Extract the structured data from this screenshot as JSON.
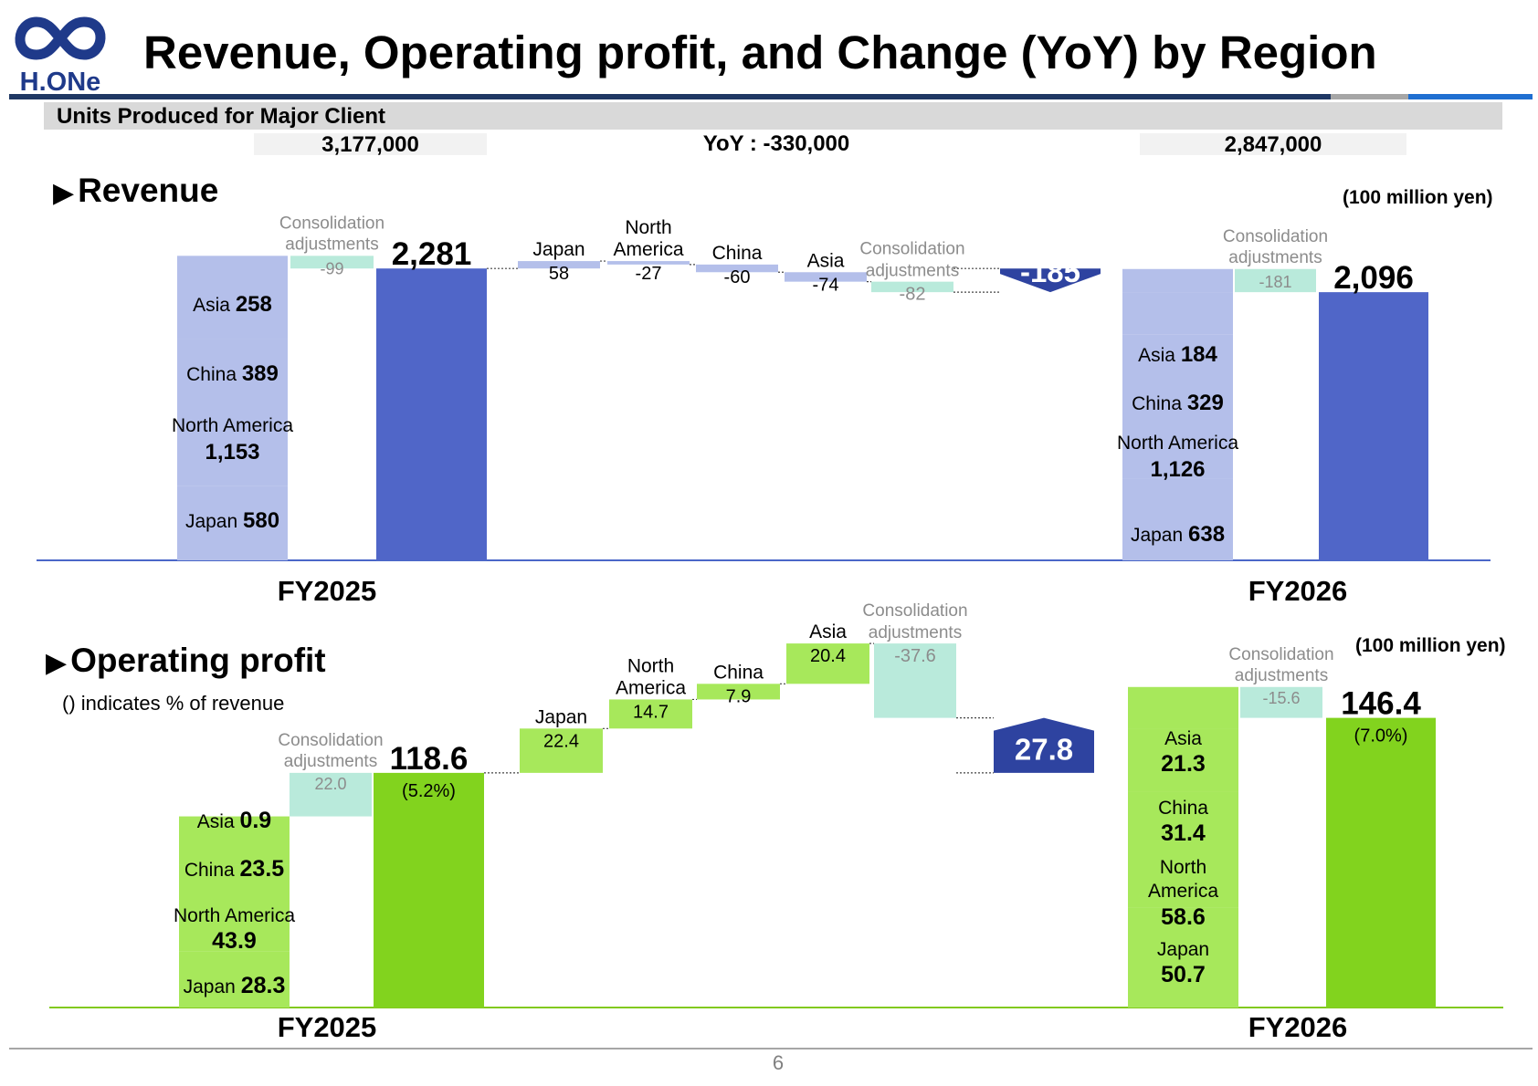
{
  "header": {
    "logo_text": "H.ONe",
    "title": "Revenue, Operating profit, and Change (YoY) by Region"
  },
  "units_produced": {
    "label": "Units Produced for Major Client",
    "fy2025": "3,177,000",
    "yoy": "YoY : -330,000",
    "fy2026": "2,847,000"
  },
  "revenue": {
    "title": "Revenue",
    "unit": "(100 million yen)",
    "fy2025_label": "FY2025",
    "fy2026_label": "FY2026"
  },
  "op_profit": {
    "title": "Operating profit",
    "note": "() indicates % of revenue",
    "unit": "(100 million yen)",
    "fy2025_label": "FY2025",
    "fy2026_label": "FY2026"
  },
  "page_number": "6",
  "colors": {
    "revenue_total": "#5066c8",
    "revenue_segment": "#b4bfea",
    "revenue_delta": "#b4bfea",
    "revenue_adjust": "#b9eadb",
    "revenue_change_badge": "#2e43a0",
    "profit_total": "#82d31e",
    "profit_segment": "#a7e85b",
    "profit_adjust": "#b9eadb",
    "profit_change_badge": "#2e43a0",
    "header_line": "#1f3864"
  },
  "chart_data": [
    {
      "type": "bar",
      "subtype": "waterfall",
      "title": "Revenue",
      "unit": "(100 million yen)",
      "ylim": [
        0,
        2400
      ],
      "fy2025": {
        "label": "FY2025",
        "stack": [
          {
            "name": "Japan",
            "value": 580,
            "value_label": "580"
          },
          {
            "name": "North America",
            "value": 1153,
            "value_label": "1,153"
          },
          {
            "name": "China",
            "value": 389,
            "value_label": "389"
          },
          {
            "name": "Asia",
            "value": 258,
            "value_label": "258"
          }
        ],
        "adjustment": {
          "name": "Consolidation adjustments",
          "value": -99,
          "value_label": "-99"
        },
        "total": 2281,
        "total_label": "2,281"
      },
      "changes": [
        {
          "name": "Japan",
          "value": 58,
          "value_label": "58"
        },
        {
          "name": "North America",
          "value": -27,
          "value_label": "-27"
        },
        {
          "name": "China",
          "value": -60,
          "value_label": "-60"
        },
        {
          "name": "Asia",
          "value": -74,
          "value_label": "-74"
        },
        {
          "name": "Consolidation adjustments",
          "value": -82,
          "value_label": "-82"
        }
      ],
      "total_change": -185,
      "total_change_label": "-185",
      "fy2026": {
        "label": "FY2026",
        "stack": [
          {
            "name": "Japan",
            "value": 638,
            "value_label": "638"
          },
          {
            "name": "North America",
            "value": 1126,
            "value_label": "1,126"
          },
          {
            "name": "China",
            "value": 329,
            "value_label": "329"
          },
          {
            "name": "Asia",
            "value": 184,
            "value_label": "184"
          }
        ],
        "adjustment": {
          "name": "Consolidation adjustments",
          "value": -181,
          "value_label": "-181"
        },
        "total": 2096,
        "total_label": "2,096"
      }
    },
    {
      "type": "bar",
      "subtype": "waterfall",
      "title": "Operating profit",
      "unit": "(100 million yen)",
      "ylim": [
        0,
        165
      ],
      "fy2025": {
        "label": "FY2025",
        "stack": [
          {
            "name": "Japan",
            "value": 28.3,
            "value_label": "28.3"
          },
          {
            "name": "North America",
            "value": 43.9,
            "value_label": "43.9"
          },
          {
            "name": "China",
            "value": 23.5,
            "value_label": "23.5"
          },
          {
            "name": "Asia",
            "value": 0.9,
            "value_label": "0.9"
          }
        ],
        "adjustment": {
          "name": "Consolidation adjustments",
          "value": 22.0,
          "value_label": "22.0"
        },
        "total": 118.6,
        "total_label": "118.6",
        "margin_label": "(5.2%)"
      },
      "changes": [
        {
          "name": "Japan",
          "value": 22.4,
          "value_label": "22.4"
        },
        {
          "name": "North America",
          "value": 14.7,
          "value_label": "14.7"
        },
        {
          "name": "China",
          "value": 7.9,
          "value_label": "7.9"
        },
        {
          "name": "Asia",
          "value": 20.4,
          "value_label": "20.4"
        },
        {
          "name": "Consolidation adjustments",
          "value": -37.6,
          "value_label": "-37.6"
        }
      ],
      "total_change": 27.8,
      "total_change_label": "27.8",
      "fy2026": {
        "label": "FY2026",
        "stack": [
          {
            "name": "Japan",
            "value": 50.7,
            "value_label": "50.7"
          },
          {
            "name": "North America",
            "value": 58.6,
            "value_label": "58.6"
          },
          {
            "name": "China",
            "value": 31.4,
            "value_label": "31.4"
          },
          {
            "name": "Asia",
            "value": 21.3,
            "value_label": "21.3"
          }
        ],
        "adjustment": {
          "name": "Consolidation adjustments",
          "value": -15.6,
          "value_label": "-15.6"
        },
        "total": 146.4,
        "total_label": "146.4",
        "margin_label": "(7.0%)"
      }
    }
  ]
}
